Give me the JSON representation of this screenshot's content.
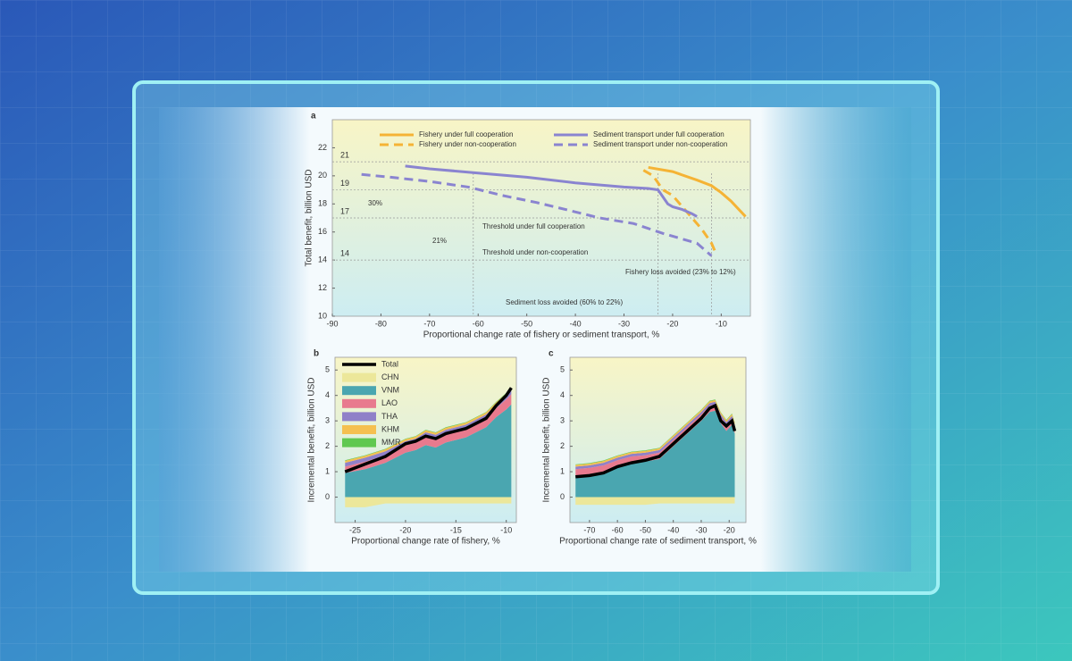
{
  "chart_data": [
    {
      "type": "line",
      "panel": "a",
      "x_label": "Proportional change rate of fishery or sediment transport, %",
      "y_label": "Total benefit, billion USD",
      "xlim": [
        -90,
        -4
      ],
      "xticks": [
        -90,
        -80,
        -70,
        -60,
        -50,
        -40,
        -30,
        -20,
        -10
      ],
      "ylim": [
        10,
        24
      ],
      "yticks": [
        10,
        12,
        14,
        16,
        18,
        20,
        22
      ],
      "hlines": [
        21,
        19,
        17,
        14
      ],
      "vlines": [
        -61,
        -23,
        -12
      ],
      "annotations": [
        "30%",
        "21%",
        "Threshold under full cooperation",
        "Threshold under non-cooperation",
        "Fishery loss avoided (23% to 12%)",
        "Sediment loss avoided (60% to 22%)"
      ],
      "series": [
        {
          "name": "Fishery under full cooperation",
          "color": "#f5b335",
          "dashed": false,
          "x": [
            -25,
            -20,
            -15,
            -12,
            -10,
            -8,
            -5
          ],
          "values": [
            20.6,
            20.3,
            19.7,
            19.3,
            18.8,
            18.2,
            17.1
          ]
        },
        {
          "name": "Fishery under non-cooperation",
          "color": "#f5b335",
          "dashed": true,
          "x": [
            -26,
            -24,
            -22,
            -20,
            -18,
            -16,
            -14,
            -12,
            -11
          ],
          "values": [
            20.4,
            20.0,
            19.0,
            18.6,
            17.8,
            17.0,
            16.2,
            15.2,
            14.4
          ]
        },
        {
          "name": "Sediment transport under full cooperation",
          "color": "#8a84d0",
          "dashed": false,
          "x": [
            -75,
            -70,
            -60,
            -50,
            -40,
            -30,
            -25,
            -23,
            -21,
            -20,
            -18,
            -16,
            -15
          ],
          "values": [
            20.7,
            20.5,
            20.2,
            19.9,
            19.5,
            19.2,
            19.1,
            19.0,
            18.0,
            17.8,
            17.6,
            17.3,
            17.1
          ]
        },
        {
          "name": "Sediment transport under non-cooperation",
          "color": "#8a84d0",
          "dashed": true,
          "x": [
            -84,
            -78,
            -70,
            -62,
            -55,
            -48,
            -42,
            -35,
            -28,
            -22,
            -18,
            -15,
            -13,
            -12
          ],
          "values": [
            20.1,
            19.9,
            19.6,
            19.2,
            18.6,
            18.1,
            17.6,
            17.0,
            16.6,
            15.9,
            15.5,
            15.2,
            14.6,
            14.3
          ]
        }
      ]
    },
    {
      "type": "area",
      "panel": "b",
      "legend": true,
      "x_label": "Proportional change rate of fishery, %",
      "y_label": "Incremental benefit, billion USD",
      "xlim": [
        -27,
        -9
      ],
      "xticks": [
        -25,
        -20,
        -15,
        -10
      ],
      "ylim": [
        -1,
        5.5
      ],
      "yticks": [
        0,
        1,
        2,
        3,
        4,
        5
      ],
      "x": [
        -26,
        -24,
        -22,
        -20,
        -19,
        -18,
        -17,
        -16,
        -14,
        -12,
        -11,
        -10,
        -9.5
      ],
      "series": [
        {
          "name": "Total",
          "color": "#000000",
          "style": "line",
          "values": [
            1.0,
            1.3,
            1.6,
            2.1,
            2.2,
            2.4,
            2.3,
            2.5,
            2.7,
            3.1,
            3.6,
            4.0,
            4.3
          ]
        },
        {
          "name": "CHN",
          "color": "#ece79a",
          "style": "area",
          "values": [
            -0.4,
            -0.4,
            -0.25,
            -0.25,
            -0.25,
            -0.25,
            -0.25,
            -0.25,
            -0.25,
            -0.25,
            -0.25,
            -0.25,
            -0.25
          ]
        },
        {
          "name": "VNM",
          "color": "#4aa6b0",
          "style": "area",
          "values": [
            0.95,
            1.1,
            1.35,
            1.75,
            1.85,
            2.05,
            1.95,
            2.15,
            2.35,
            2.75,
            3.15,
            3.45,
            3.65
          ]
        },
        {
          "name": "LAO",
          "color": "#e87a8e",
          "style": "area",
          "values": [
            0.25,
            0.3,
            0.3,
            0.3,
            0.3,
            0.35,
            0.35,
            0.35,
            0.35,
            0.35,
            0.35,
            0.4,
            0.4
          ]
        },
        {
          "name": "THA",
          "color": "#9080c8",
          "style": "area",
          "values": [
            0.15,
            0.15,
            0.15,
            0.15,
            0.15,
            0.15,
            0.15,
            0.15,
            0.15,
            0.15,
            0.15,
            0.15,
            0.15
          ]
        },
        {
          "name": "KHM",
          "color": "#f5c050",
          "style": "area",
          "values": [
            0.08,
            0.08,
            0.08,
            0.08,
            0.08,
            0.08,
            0.08,
            0.08,
            0.08,
            0.08,
            0.08,
            0.08,
            0.08
          ]
        },
        {
          "name": "MMR",
          "color": "#60c850",
          "style": "area",
          "values": [
            0.02,
            0.02,
            0.02,
            0.02,
            0.02,
            0.02,
            0.02,
            0.02,
            0.02,
            0.02,
            0.02,
            0.02,
            0.02
          ]
        }
      ]
    },
    {
      "type": "area",
      "panel": "c",
      "legend": false,
      "x_label": "Proportional change rate of sediment transport, %",
      "y_label": "Incremental benefit, billion USD",
      "xlim": [
        -77,
        -14
      ],
      "xticks": [
        -70,
        -60,
        -50,
        -40,
        -30,
        -20
      ],
      "ylim": [
        -1,
        5.5
      ],
      "yticks": [
        0,
        1,
        2,
        3,
        4,
        5
      ],
      "x": [
        -75,
        -70,
        -65,
        -60,
        -55,
        -50,
        -45,
        -40,
        -35,
        -30,
        -27,
        -25,
        -23,
        -21,
        -19,
        -18
      ],
      "series": [
        {
          "name": "Total",
          "color": "#000000",
          "style": "line",
          "values": [
            0.8,
            0.85,
            0.95,
            1.2,
            1.35,
            1.45,
            1.6,
            2.1,
            2.6,
            3.1,
            3.5,
            3.6,
            3.0,
            2.8,
            3.0,
            2.6
          ]
        },
        {
          "name": "CHN",
          "color": "#ece79a",
          "style": "area",
          "values": [
            -0.3,
            -0.3,
            -0.3,
            -0.3,
            -0.3,
            -0.3,
            -0.25,
            -0.25,
            -0.25,
            -0.25,
            -0.25,
            -0.25,
            -0.25,
            -0.25,
            -0.25,
            -0.25
          ]
        },
        {
          "name": "VNM",
          "color": "#4aa6b0",
          "style": "area",
          "values": [
            0.85,
            0.9,
            1.0,
            1.2,
            1.35,
            1.4,
            1.5,
            2.0,
            2.5,
            3.0,
            3.35,
            3.4,
            2.9,
            2.6,
            2.85,
            2.5
          ]
        },
        {
          "name": "LAO",
          "color": "#e87a8e",
          "style": "area",
          "values": [
            0.25,
            0.25,
            0.25,
            0.25,
            0.25,
            0.25,
            0.25,
            0.25,
            0.25,
            0.25,
            0.25,
            0.25,
            0.25,
            0.25,
            0.25,
            0.25
          ]
        },
        {
          "name": "THA",
          "color": "#9080c8",
          "style": "area",
          "values": [
            0.1,
            0.1,
            0.1,
            0.1,
            0.1,
            0.1,
            0.1,
            0.1,
            0.1,
            0.1,
            0.1,
            0.1,
            0.1,
            0.1,
            0.1,
            0.1
          ]
        },
        {
          "name": "KHM",
          "color": "#f5c050",
          "style": "area",
          "values": [
            0.07,
            0.07,
            0.07,
            0.07,
            0.07,
            0.07,
            0.07,
            0.07,
            0.07,
            0.07,
            0.07,
            0.07,
            0.07,
            0.07,
            0.07,
            0.07
          ]
        },
        {
          "name": "MMR",
          "color": "#60c850",
          "style": "area",
          "values": [
            0.02,
            0.02,
            0.02,
            0.02,
            0.02,
            0.02,
            0.02,
            0.02,
            0.02,
            0.02,
            0.02,
            0.02,
            0.02,
            0.02,
            0.02,
            0.02
          ]
        }
      ]
    }
  ]
}
